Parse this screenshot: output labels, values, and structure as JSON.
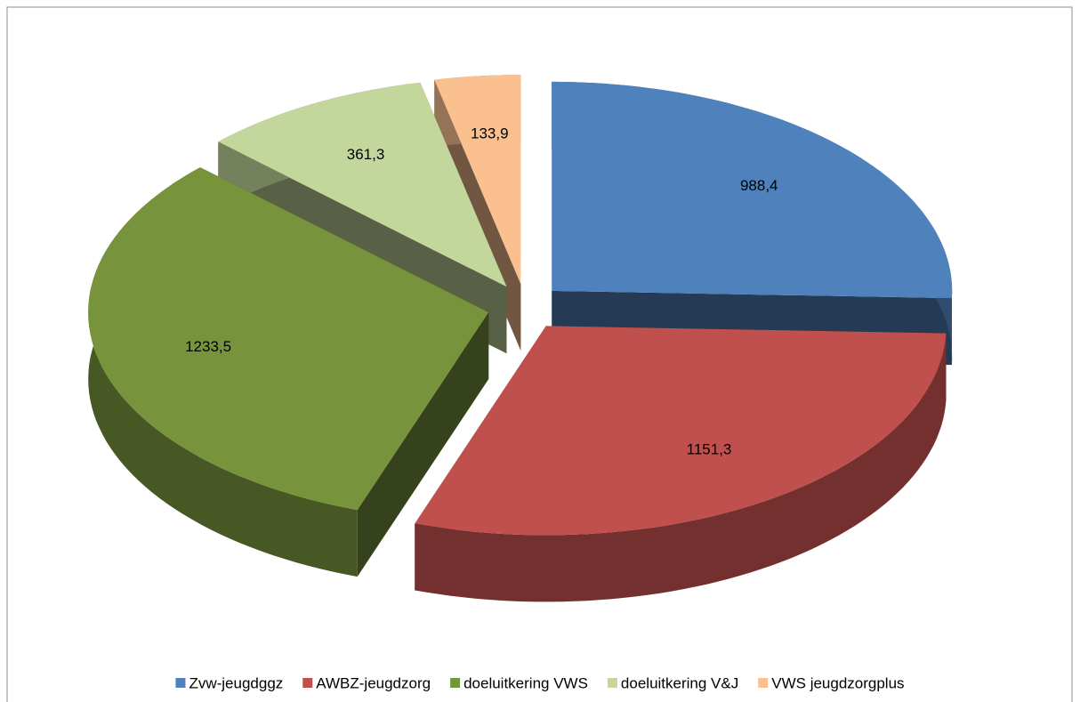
{
  "chart_data": {
    "type": "pie",
    "categories": [
      "Zvw-jeugdggz",
      "AWBZ-jeugdzorg",
      "doeluitkering VWS",
      "doeluitkering V&J",
      "VWS jeugdzorgplus"
    ],
    "values": [
      988.4,
      1151.3,
      1233.5,
      361.3,
      133.9
    ],
    "value_labels": [
      "988,4",
      "1151,3",
      "1233,5",
      "361,3",
      "133,9"
    ],
    "colors": [
      "#4f81bd",
      "#c0504d",
      "#77933c",
      "#c3d69b",
      "#fac090"
    ],
    "legend": "bottom"
  }
}
